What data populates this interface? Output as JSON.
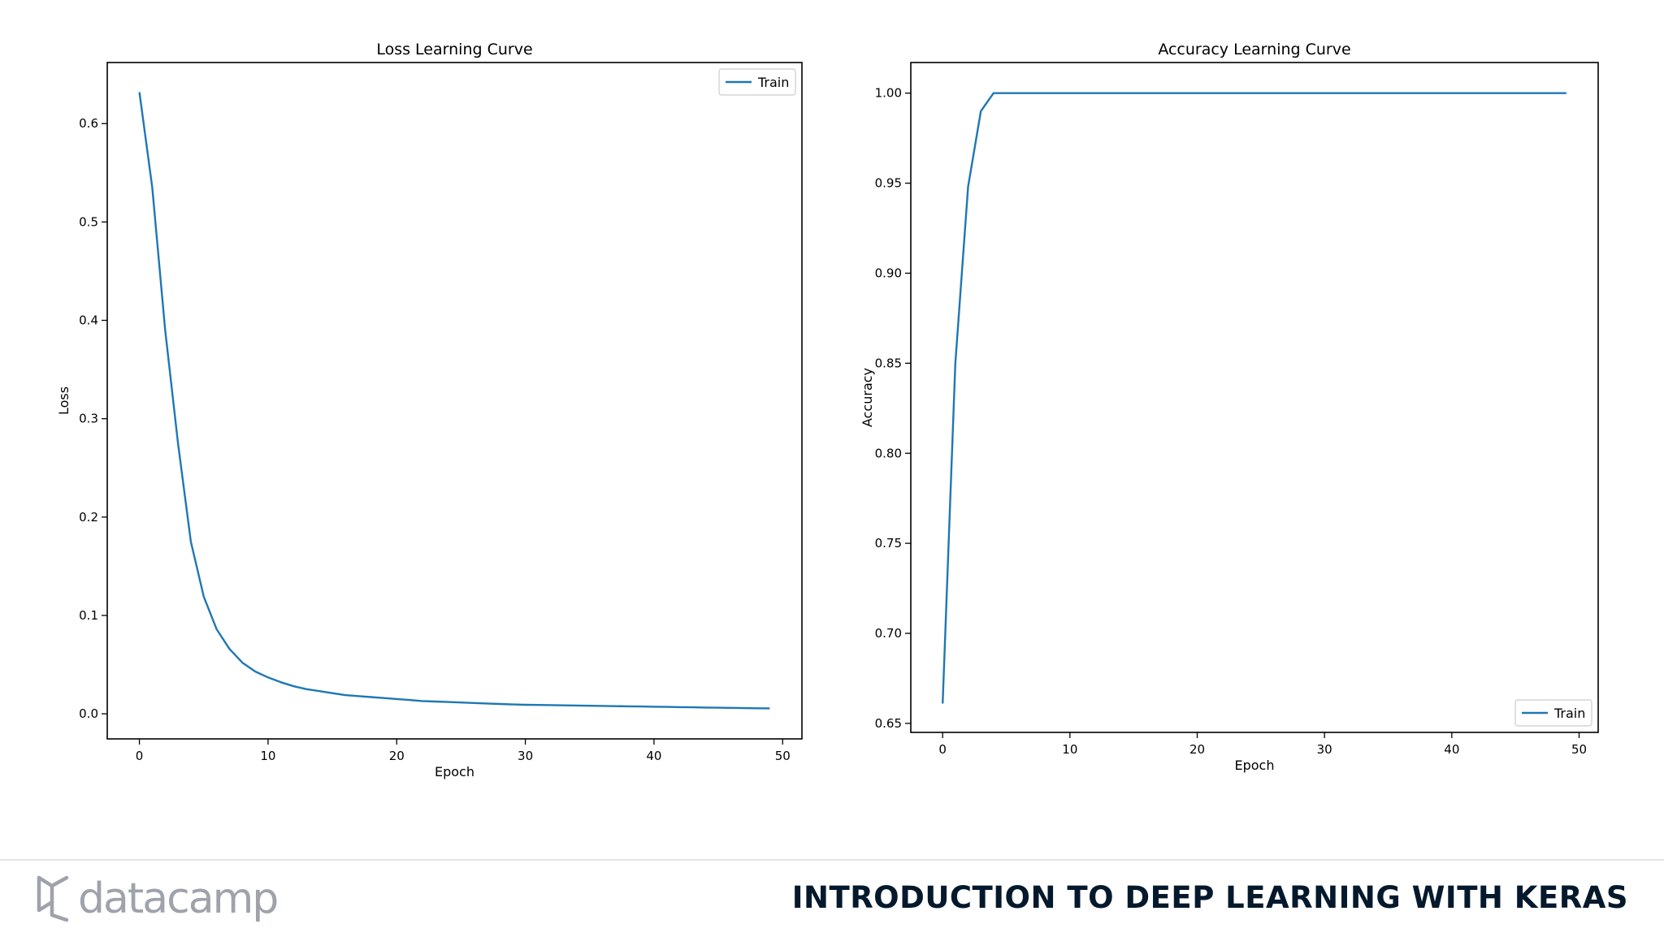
{
  "footer": {
    "brand": "datacamp",
    "course_title": "INTRODUCTION TO DEEP LEARNING WITH KERAS"
  },
  "colors": {
    "line": "#1f77b4",
    "brand_gray": "#9ea2aa",
    "title_navy": "#05192d"
  },
  "chart_data": [
    {
      "type": "line",
      "title": "Loss Learning Curve",
      "xlabel": "Epoch",
      "ylabel": "Loss",
      "xlim": [
        -2.5,
        51.5
      ],
      "ylim": [
        -0.0255,
        0.6621
      ],
      "xticks": [
        0,
        10,
        20,
        30,
        40,
        50
      ],
      "yticks": [
        0.0,
        0.1,
        0.2,
        0.3,
        0.4,
        0.5,
        0.6
      ],
      "ytick_labels": [
        "0.0",
        "0.1",
        "0.2",
        "0.3",
        "0.4",
        "0.5",
        "0.6"
      ],
      "legend": "upper right",
      "grid": false,
      "series": [
        {
          "name": "Train",
          "x": [
            0,
            1,
            2,
            3,
            4,
            5,
            6,
            7,
            8,
            9,
            10,
            11,
            12,
            13,
            14,
            15,
            16,
            17,
            18,
            19,
            20,
            21,
            22,
            23,
            24,
            25,
            26,
            27,
            28,
            29,
            30,
            31,
            32,
            33,
            34,
            35,
            36,
            37,
            38,
            39,
            40,
            41,
            42,
            43,
            44,
            45,
            46,
            47,
            48,
            49
          ],
          "y": [
            0.632,
            0.535,
            0.39,
            0.275,
            0.175,
            0.119,
            0.086,
            0.066,
            0.052,
            0.043,
            0.037,
            0.032,
            0.028,
            0.025,
            0.023,
            0.021,
            0.019,
            0.018,
            0.017,
            0.016,
            0.015,
            0.014,
            0.013,
            0.0125,
            0.012,
            0.0115,
            0.011,
            0.0105,
            0.01,
            0.0095,
            0.0092,
            0.009,
            0.0088,
            0.0086,
            0.0084,
            0.0082,
            0.008,
            0.0078,
            0.0076,
            0.0074,
            0.0072,
            0.007,
            0.0068,
            0.0066,
            0.0064,
            0.0062,
            0.006,
            0.0058,
            0.0056,
            0.0055
          ]
        }
      ]
    },
    {
      "type": "line",
      "title": "Accuracy Learning Curve",
      "xlabel": "Epoch",
      "ylabel": "Accuracy",
      "xlim": [
        -2.5,
        51.5
      ],
      "ylim": [
        0.645,
        1.017
      ],
      "xticks": [
        0,
        10,
        20,
        30,
        40,
        50
      ],
      "yticks": [
        0.65,
        0.7,
        0.75,
        0.8,
        0.85,
        0.9,
        0.95,
        1.0
      ],
      "ytick_labels": [
        "0.65",
        "0.70",
        "0.75",
        "0.80",
        "0.85",
        "0.90",
        "0.95",
        "1.00"
      ],
      "legend": "lower right",
      "grid": false,
      "series": [
        {
          "name": "Train",
          "x": [
            0,
            1,
            2,
            3,
            4,
            5,
            6,
            7,
            8,
            9,
            10,
            11,
            12,
            13,
            14,
            15,
            16,
            17,
            18,
            19,
            20,
            21,
            22,
            23,
            24,
            25,
            26,
            27,
            28,
            29,
            30,
            31,
            32,
            33,
            34,
            35,
            36,
            37,
            38,
            39,
            40,
            41,
            42,
            43,
            44,
            45,
            46,
            47,
            48,
            49
          ],
          "y": [
            0.661,
            0.85,
            0.948,
            0.99,
            1.0,
            1.0,
            1.0,
            1.0,
            1.0,
            1.0,
            1.0,
            1.0,
            1.0,
            1.0,
            1.0,
            1.0,
            1.0,
            1.0,
            1.0,
            1.0,
            1.0,
            1.0,
            1.0,
            1.0,
            1.0,
            1.0,
            1.0,
            1.0,
            1.0,
            1.0,
            1.0,
            1.0,
            1.0,
            1.0,
            1.0,
            1.0,
            1.0,
            1.0,
            1.0,
            1.0,
            1.0,
            1.0,
            1.0,
            1.0,
            1.0,
            1.0,
            1.0,
            1.0,
            1.0,
            1.0
          ]
        }
      ]
    }
  ]
}
